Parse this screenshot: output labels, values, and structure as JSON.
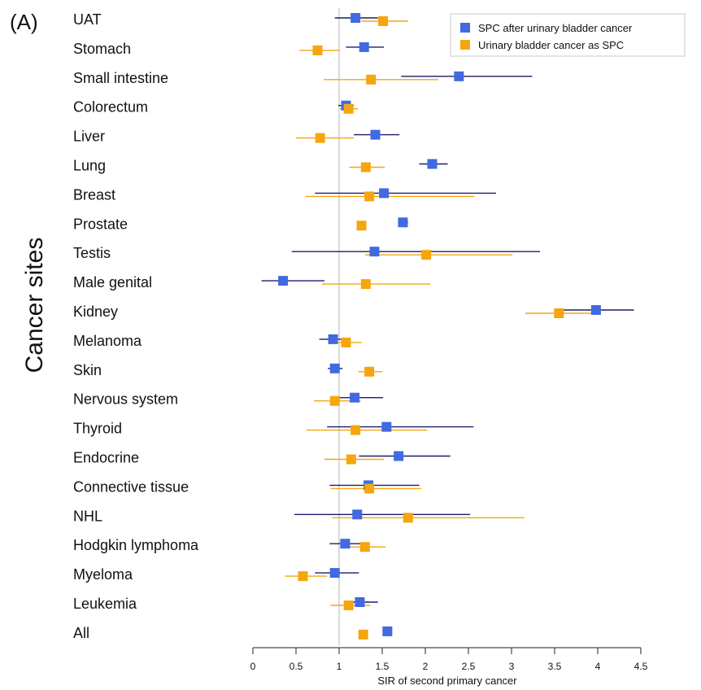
{
  "chart_data": {
    "type": "scatter",
    "panel_label": "(A)",
    "xlabel": "SIR of second primary cancer",
    "ylabel": "Cancer sites",
    "xlim": [
      0,
      4.5
    ],
    "xticks": [
      0,
      0.5,
      1,
      1.5,
      2,
      2.5,
      3,
      3.5,
      4,
      4.5
    ],
    "xtick_labels": [
      "0",
      "0.5",
      "1",
      "1.5",
      "2",
      "2.5",
      "3",
      "3.5",
      "4",
      "4.5"
    ],
    "reference_line": 1,
    "legend_position": "top-right",
    "categories": [
      "UAT",
      "Stomach",
      "Small intestine",
      "Colorectum",
      "Liver",
      "Lung",
      "Breast",
      "Prostate",
      "Testis",
      "Male genital",
      "Kidney",
      "Melanoma",
      "Skin",
      "Nervous system",
      "Thyroid",
      "Endocrine",
      "Connective tissue",
      "NHL",
      "Hodgkin lymphoma",
      "Myeloma",
      "Leukemia",
      "All"
    ],
    "series": [
      {
        "name": "SPC after urinary bladder cancer",
        "color": "#4169e1",
        "line_color": "#1c1c6b",
        "points": [
          {
            "est": 1.19,
            "lo": 0.95,
            "hi": 1.45
          },
          {
            "est": 1.29,
            "lo": 1.08,
            "hi": 1.52
          },
          {
            "est": 2.39,
            "lo": 1.72,
            "hi": 3.24
          },
          {
            "est": 1.08,
            "lo": 0.99,
            "hi": 1.17
          },
          {
            "est": 1.42,
            "lo": 1.17,
            "hi": 1.7
          },
          {
            "est": 2.08,
            "lo": 1.93,
            "hi": 2.26
          },
          {
            "est": 1.52,
            "lo": 0.72,
            "hi": 2.82
          },
          {
            "est": 1.74,
            "lo": 1.69,
            "hi": 1.8
          },
          {
            "est": 1.41,
            "lo": 0.45,
            "hi": 3.33
          },
          {
            "est": 0.35,
            "lo": 0.1,
            "hi": 0.83
          },
          {
            "est": 3.98,
            "lo": 3.57,
            "hi": 4.42
          },
          {
            "est": 0.93,
            "lo": 0.77,
            "hi": 1.12
          },
          {
            "est": 0.95,
            "lo": 0.87,
            "hi": 1.04
          },
          {
            "est": 1.18,
            "lo": 0.91,
            "hi": 1.51
          },
          {
            "est": 1.55,
            "lo": 0.86,
            "hi": 2.56
          },
          {
            "est": 1.69,
            "lo": 1.23,
            "hi": 2.29
          },
          {
            "est": 1.34,
            "lo": 0.89,
            "hi": 1.93
          },
          {
            "est": 1.21,
            "lo": 0.48,
            "hi": 2.52
          },
          {
            "est": 1.07,
            "lo": 0.89,
            "hi": 1.28
          },
          {
            "est": 0.95,
            "lo": 0.72,
            "hi": 1.23
          },
          {
            "est": 1.24,
            "lo": 1.06,
            "hi": 1.45
          },
          {
            "est": 1.56,
            "lo": 1.51,
            "hi": 1.6
          }
        ]
      },
      {
        "name": "Urinary bladder cancer as SPC",
        "color": "#f5a50e",
        "line_color": "#f5a50e",
        "points": [
          {
            "est": 1.51,
            "lo": 1.26,
            "hi": 1.8
          },
          {
            "est": 0.75,
            "lo": 0.54,
            "hi": 1.01
          },
          {
            "est": 1.37,
            "lo": 0.82,
            "hi": 2.15
          },
          {
            "est": 1.11,
            "lo": 1.01,
            "hi": 1.22
          },
          {
            "est": 0.78,
            "lo": 0.5,
            "hi": 1.17
          },
          {
            "est": 1.31,
            "lo": 1.12,
            "hi": 1.53
          },
          {
            "est": 1.35,
            "lo": 0.61,
            "hi": 2.57
          },
          {
            "est": 1.26,
            "lo": 1.24,
            "hi": 1.28
          },
          {
            "est": 2.01,
            "lo": 1.3,
            "hi": 3.01
          },
          {
            "est": 1.31,
            "lo": 0.8,
            "hi": 2.06
          },
          {
            "est": 3.55,
            "lo": 3.16,
            "hi": 3.97
          },
          {
            "est": 1.08,
            "lo": 0.92,
            "hi": 1.26
          },
          {
            "est": 1.35,
            "lo": 1.22,
            "hi": 1.5
          },
          {
            "est": 0.95,
            "lo": 0.71,
            "hi": 1.25
          },
          {
            "est": 1.19,
            "lo": 0.62,
            "hi": 2.02
          },
          {
            "est": 1.14,
            "lo": 0.83,
            "hi": 1.52
          },
          {
            "est": 1.35,
            "lo": 0.9,
            "hi": 1.95
          },
          {
            "est": 1.8,
            "lo": 0.92,
            "hi": 3.15
          },
          {
            "est": 1.3,
            "lo": 1.1,
            "hi": 1.54
          },
          {
            "est": 0.58,
            "lo": 0.37,
            "hi": 0.86
          },
          {
            "est": 1.11,
            "lo": 0.9,
            "hi": 1.36
          },
          {
            "est": 1.28,
            "lo": 1.25,
            "hi": 1.32
          }
        ]
      }
    ]
  }
}
